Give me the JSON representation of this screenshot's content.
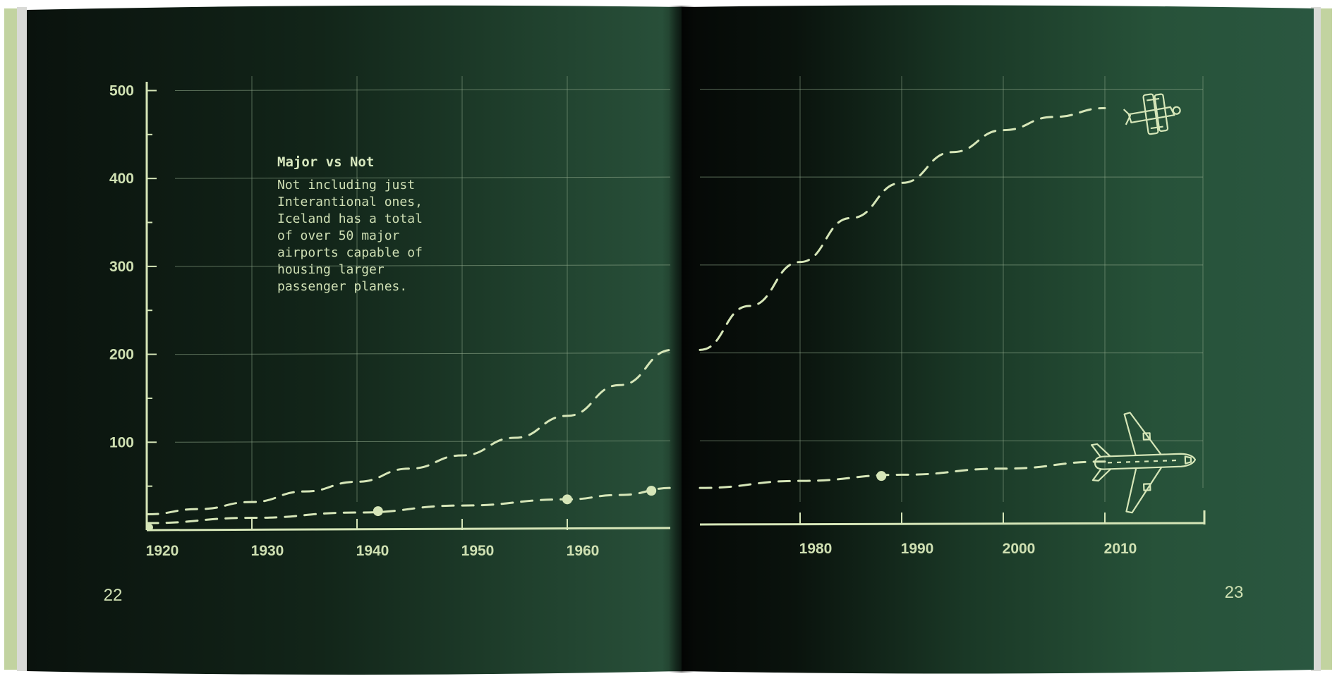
{
  "book": {
    "left_page_number": "22",
    "right_page_number": "23"
  },
  "annotation": {
    "title": "Major vs Not",
    "lines": [
      "Not including just",
      "Interantional ones,",
      "Iceland has a total",
      "of over 50 major",
      "airports capable of",
      "housing larger",
      "passenger planes."
    ]
  },
  "icons": [
    "biplane-icon",
    "airliner-icon"
  ],
  "colors": {
    "page_dark": "#0b130e",
    "page_green": "#2c5840",
    "ink": "#d6e6b8",
    "grid": "#8fa88a",
    "cover_edge": "#c2d3a0"
  },
  "chart_data": {
    "type": "line",
    "x_ticks": [
      1920,
      1930,
      1940,
      1950,
      1960,
      1980,
      1990,
      2000,
      2010
    ],
    "y_ticks": [
      100,
      200,
      300,
      400,
      500
    ],
    "xlim": [
      1920,
      2018
    ],
    "ylim": [
      0,
      510
    ],
    "grid": true,
    "series": [
      {
        "x": [
          1920,
          1925,
          1930,
          1935,
          1940,
          1945,
          1950,
          1955,
          1960,
          1965,
          1970,
          1975,
          1980,
          1985,
          1990,
          1995,
          2000,
          2005,
          2010
        ],
        "values": [
          18,
          24,
          32,
          44,
          55,
          70,
          85,
          105,
          130,
          165,
          205,
          255,
          305,
          355,
          395,
          430,
          455,
          470,
          480
        ],
        "markers": []
      },
      {
        "x": [
          1920,
          1930,
          1940,
          1950,
          1960,
          1965,
          1970,
          1980,
          1990,
          2000,
          2010
        ],
        "values": [
          8,
          14,
          20,
          28,
          35,
          40,
          48,
          56,
          63,
          70,
          78
        ],
        "markers": [
          1942,
          1960,
          1968,
          1988
        ]
      }
    ]
  }
}
